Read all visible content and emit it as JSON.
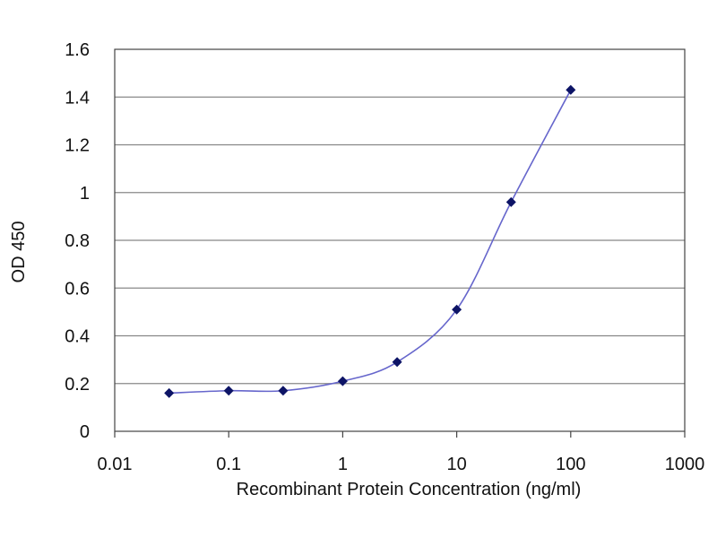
{
  "chart_data": {
    "type": "line",
    "title": "",
    "xlabel": "Recombinant Protein Concentration (ng/ml)",
    "ylabel": "OD 450",
    "x_scale": "log",
    "xlim": [
      0.01,
      1000
    ],
    "ylim": [
      0,
      1.6
    ],
    "x_ticks": [
      0.01,
      0.1,
      1,
      10,
      100,
      1000
    ],
    "x_tick_labels": [
      "0.01",
      "0.1",
      "1",
      "10",
      "100",
      "1000"
    ],
    "y_ticks": [
      0,
      0.2,
      0.4,
      0.6,
      0.8,
      1.0,
      1.2,
      1.4,
      1.6
    ],
    "y_tick_labels": [
      "0",
      "0.2",
      "0.4",
      "0.6",
      "0.8",
      "1",
      "1.2",
      "1.4",
      "1.6"
    ],
    "grid": "horizontal",
    "legend": "none",
    "series": [
      {
        "x": [
          0.03,
          0.1,
          0.3,
          1,
          3,
          10,
          30,
          100
        ],
        "y": [
          0.16,
          0.17,
          0.17,
          0.21,
          0.29,
          0.51,
          0.96,
          1.43
        ]
      }
    ],
    "colors": {
      "line": "#6666cc",
      "marker": "#0d1466",
      "grid": "#888888",
      "axis": "#444444"
    }
  }
}
